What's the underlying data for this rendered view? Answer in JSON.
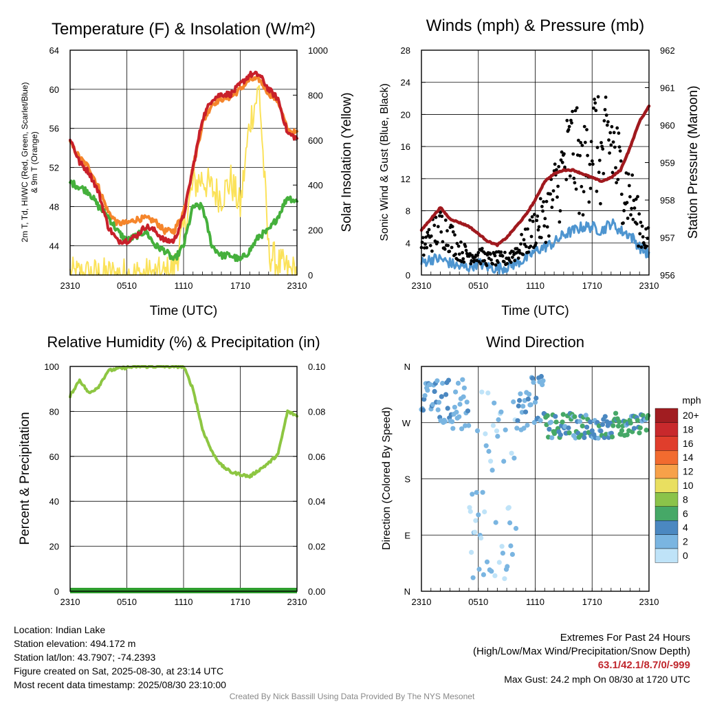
{
  "panels": {
    "temperature": {
      "title": "Temperature (F) & Insolation (W/m²)",
      "ylabel_left": [
        "2m T, Td, HI/WC (Red, Green, Scarlet/Blue)",
        "& 9m T (Orange)"
      ],
      "ylabel_right": "Solar Insolation (Yellow)",
      "xlabel": "Time (UTC)"
    },
    "winds": {
      "title": "Winds (mph) & Pressure (mb)",
      "ylabel_left": "Sonic Wind & Gust (Blue, Black)",
      "ylabel_right": "Station Pressure (Maroon)",
      "xlabel": "Time (UTC)"
    },
    "humidity": {
      "title": "Relative Humidity (%) & Precipitation (in)",
      "ylabel_left": "Percent & Precipitation"
    },
    "direction": {
      "title": "Wind Direction",
      "ylabel_left": "Direction (Colored By Speed)",
      "colorbar_title": "mph",
      "colorbar_labels": [
        "20+",
        "18",
        "16",
        "14",
        "12",
        "10",
        "8",
        "6",
        "4",
        "2",
        "0"
      ],
      "colorbar_colors": [
        "#a11d21",
        "#c8292c",
        "#e03e2c",
        "#f26b2f",
        "#f7a149",
        "#e9df60",
        "#8bc34a",
        "#46a867",
        "#4b88c1",
        "#7ab5e1",
        "#bfe3f8"
      ]
    }
  },
  "series_colors": {
    "temp": "#c8202a",
    "dewpoint": "#45b03c",
    "temp9m": "#f5852b",
    "solar": "#fbe25a",
    "wind": "#4e95d0",
    "gust": "#000000",
    "pressure": "#a0191e",
    "rh": "#8dc642",
    "precip": "#2e9e2e"
  },
  "chart_data": [
    {
      "type": "line",
      "panel": "temperature",
      "x_ticks": [
        "2310",
        "0510",
        "1110",
        "1710",
        "2310"
      ],
      "x_range_hours": [
        0,
        24
      ],
      "y_ticks": [
        44,
        48,
        52,
        56,
        60,
        64
      ],
      "ylim": [
        41,
        64
      ],
      "y2_ticks": [
        0,
        200,
        400,
        600,
        800,
        1000
      ],
      "y2lim": [
        0,
        1000
      ],
      "series": [
        {
          "key": "temp",
          "axis": "left",
          "t": [
            0,
            1,
            2,
            3,
            4,
            5,
            6,
            7,
            8,
            9,
            10,
            11,
            12,
            13,
            14,
            15,
            16,
            17,
            18,
            19,
            20,
            21,
            22,
            23,
            24
          ],
          "values": [
            55,
            52.5,
            51.5,
            49.5,
            46,
            44.5,
            44.5,
            45,
            46,
            45.5,
            44.5,
            44.5,
            47,
            52,
            57,
            59,
            59.5,
            59.5,
            60.5,
            61.5,
            61.5,
            60,
            59,
            55.5,
            55
          ]
        },
        {
          "key": "temp9m",
          "axis": "left",
          "t": [
            0,
            1,
            2,
            3,
            4,
            5,
            6,
            7,
            8,
            9,
            10,
            11,
            12,
            13,
            14,
            15,
            16,
            17,
            18,
            19,
            20,
            21,
            22,
            23,
            24
          ],
          "values": [
            54.5,
            53,
            52,
            50,
            47.5,
            46.3,
            46.3,
            46.7,
            46.8,
            46.5,
            45.5,
            45.5,
            47.5,
            52,
            56.5,
            58.5,
            59,
            59.2,
            60,
            61,
            61,
            59.6,
            58.8,
            55.8,
            55.5
          ]
        },
        {
          "key": "dewpoint",
          "axis": "left",
          "t": [
            0,
            1,
            2,
            3,
            4,
            5,
            6,
            7,
            8,
            9,
            10,
            11,
            12,
            13,
            14,
            15,
            16,
            17,
            18,
            19,
            20,
            21,
            22,
            23,
            24
          ],
          "values": [
            50.5,
            50,
            49.5,
            48,
            47,
            45.5,
            44.5,
            45,
            45.5,
            44,
            43.5,
            42.5,
            44,
            48,
            48,
            44,
            43,
            43,
            42.5,
            43.5,
            45,
            45.5,
            47,
            49,
            48.5
          ]
        },
        {
          "key": "solar",
          "axis": "right",
          "t": [
            0,
            1,
            2,
            3,
            4,
            5,
            6,
            7,
            8,
            9,
            10,
            11,
            12,
            13,
            14,
            15,
            16,
            17,
            18,
            19,
            20,
            21,
            22,
            23,
            24
          ],
          "values": [
            0,
            0,
            0,
            0,
            0,
            0,
            0,
            0,
            0,
            0,
            0,
            30,
            200,
            400,
            430,
            380,
            350,
            420,
            300,
            680,
            830,
            100,
            50,
            20,
            10
          ]
        }
      ]
    },
    {
      "type": "line",
      "panel": "winds",
      "x_ticks": [
        "2310",
        "0510",
        "1110",
        "1710",
        "2310"
      ],
      "y_ticks": [
        0,
        4,
        8,
        12,
        16,
        20,
        24,
        28
      ],
      "ylim": [
        0,
        28
      ],
      "y2_ticks": [
        956,
        957,
        958,
        959,
        960,
        961,
        962
      ],
      "y2lim": [
        956,
        962
      ],
      "series": [
        {
          "key": "pressure",
          "axis": "right",
          "t": [
            0,
            1,
            2,
            3,
            4,
            5,
            6,
            7,
            8,
            9,
            10,
            11,
            12,
            13,
            14,
            15,
            16,
            17,
            18,
            19,
            20,
            21,
            22,
            23,
            24
          ],
          "values": [
            957.2,
            957.5,
            957.8,
            957.5,
            957.4,
            957.3,
            957.1,
            956.9,
            956.8,
            957.0,
            957.3,
            957.6,
            958.0,
            958.5,
            958.7,
            958.8,
            958.8,
            958.7,
            958.6,
            958.5,
            958.6,
            958.8,
            959.4,
            960.1,
            960.5
          ]
        },
        {
          "key": "wind",
          "axis": "left",
          "t": [
            0,
            1,
            2,
            3,
            4,
            5,
            6,
            7,
            8,
            9,
            10,
            11,
            12,
            13,
            14,
            15,
            16,
            17,
            18,
            19,
            20,
            21,
            22,
            23,
            24
          ],
          "values": [
            1.5,
            2,
            2,
            1.5,
            1,
            1,
            1.5,
            1,
            0.8,
            1,
            1.5,
            2,
            3,
            3.5,
            4,
            5,
            5.5,
            6,
            6,
            5.5,
            6.5,
            5.5,
            5,
            3.5,
            2.5
          ]
        },
        {
          "key": "gust",
          "axis": "left",
          "t": [
            0,
            1,
            2,
            3,
            4,
            5,
            6,
            7,
            8,
            9,
            10,
            11,
            12,
            13,
            14,
            15,
            16,
            17,
            18,
            19,
            20,
            21,
            22,
            23,
            24
          ],
          "values": [
            3,
            5,
            6,
            5,
            3,
            2.5,
            2.5,
            2,
            2,
            2,
            3,
            4,
            6,
            7,
            10,
            13,
            16,
            12,
            18,
            14,
            17,
            12,
            10,
            6,
            4
          ]
        }
      ],
      "annotations": [
        "Gust peak 24.2 mph near 1720 UTC"
      ]
    },
    {
      "type": "line",
      "panel": "humidity",
      "x_ticks": [
        "2310",
        "0510",
        "1110",
        "1710",
        "2310"
      ],
      "y_ticks": [
        0,
        20,
        40,
        60,
        80,
        100
      ],
      "ylim": [
        0,
        100
      ],
      "y2_ticks": [
        "0.00",
        "0.02",
        "0.04",
        "0.06",
        "0.08",
        "0.10"
      ],
      "y2lim": [
        0,
        0.1
      ],
      "series": [
        {
          "key": "rh",
          "axis": "left",
          "t": [
            0,
            1,
            2,
            3,
            4,
            5,
            6,
            7,
            8,
            9,
            10,
            11,
            12,
            13,
            14,
            15,
            16,
            17,
            18,
            19,
            20,
            21,
            22,
            23,
            24
          ],
          "values": [
            87,
            94,
            88,
            91,
            98,
            99,
            99.5,
            100,
            100,
            100,
            100,
            100,
            100,
            90,
            72,
            62,
            56,
            53,
            52,
            51,
            54,
            57,
            61,
            80,
            78
          ]
        },
        {
          "key": "precip",
          "axis": "right",
          "t": [
            0,
            24
          ],
          "values": [
            0,
            0
          ]
        }
      ]
    },
    {
      "type": "scatter",
      "panel": "direction",
      "x_ticks": [
        "2310",
        "0510",
        "1110",
        "1710",
        "2310"
      ],
      "y_ticks": [
        "N",
        "W",
        "S",
        "E",
        "N"
      ],
      "ylim": [
        0,
        360
      ],
      "color_scale_mph": [
        0,
        20
      ]
    }
  ],
  "footer": {
    "location": "Location: Indian Lake",
    "elevation": "Station elevation: 494.172 m",
    "latlon": "Station lat/lon: 43.7907; -74.2393",
    "created": "Figure created on Sat, 2025-08-30, at 23:14 UTC",
    "recent": "Most recent data timestamp: 2025/08/30 23:10:00",
    "extremes_title": "Extremes For Past 24 Hours",
    "extremes_sub": "(High/Low/Max Wind/Precipitation/Snow Depth)",
    "extremes_values": "63.1/42.1/8.7/0/-999",
    "max_gust": "Max Gust: 24.2 mph On 08/30 at 1720 UTC",
    "credit": "Created By Nick Bassill Using Data Provided By The NYS Mesonet"
  }
}
